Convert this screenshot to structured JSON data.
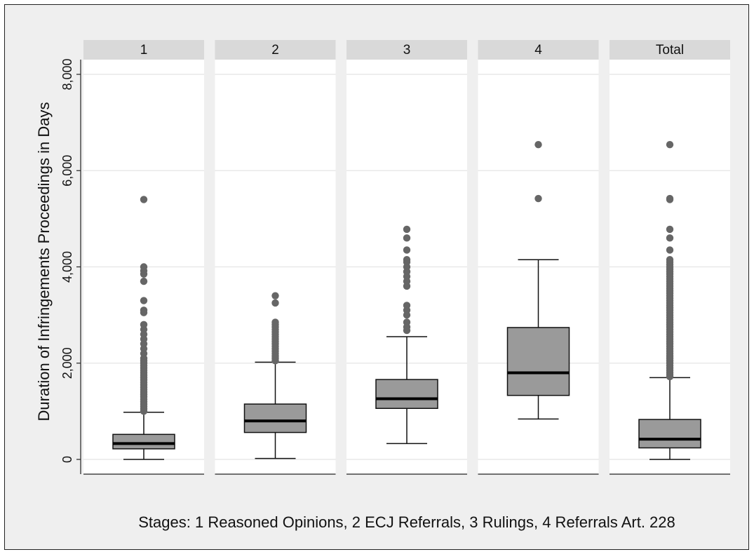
{
  "chart_data": {
    "type": "box",
    "ylabel": "Duration of Infringements Proceedings in Days",
    "ylim": [
      0,
      8000
    ],
    "yticks": [
      0,
      2000,
      4000,
      6000,
      8000
    ],
    "ytick_labels": [
      "0",
      "2,000",
      "4,000",
      "6,000",
      "8,000"
    ],
    "note": "Stages: 1 Reasoned Opinions, 2 ECJ Referrals, 3 Rulings, 4 Referrals Art. 228",
    "grid": true,
    "colors": {
      "box_fill": "#9a9a9a",
      "median": "#000000",
      "outlier": "#666666",
      "panel": "#ffffff",
      "strip": "#d9d9d9",
      "background": "#efefef"
    },
    "panels": [
      {
        "label": "1",
        "whisker_low": 0,
        "q1": 220,
        "median": 330,
        "q3": 520,
        "whisker_high": 980,
        "outliers": [
          1000,
          1050,
          1100,
          1150,
          1200,
          1250,
          1300,
          1350,
          1400,
          1450,
          1500,
          1550,
          1600,
          1650,
          1700,
          1750,
          1800,
          1850,
          1900,
          1950,
          2000,
          2050,
          2100,
          2200,
          2300,
          2400,
          2500,
          2600,
          2700,
          2800,
          3050,
          3100,
          3300,
          3700,
          3850,
          3920,
          4000,
          5400
        ]
      },
      {
        "label": "2",
        "whisker_low": 20,
        "q1": 560,
        "median": 800,
        "q3": 1150,
        "whisker_high": 2020,
        "outliers": [
          2050,
          2100,
          2150,
          2200,
          2250,
          2300,
          2350,
          2400,
          2450,
          2500,
          2550,
          2600,
          2650,
          2700,
          2750,
          2800,
          2850,
          3250,
          3400
        ]
      },
      {
        "label": "3",
        "whisker_low": 330,
        "q1": 1060,
        "median": 1260,
        "q3": 1660,
        "whisker_high": 2550,
        "outliers": [
          2680,
          2750,
          2850,
          3000,
          3100,
          3200,
          3600,
          3700,
          3800,
          3900,
          4000,
          4100,
          4150,
          4350,
          4600,
          4780
        ]
      },
      {
        "label": "4",
        "whisker_low": 840,
        "q1": 1330,
        "median": 1800,
        "q3": 2740,
        "whisker_high": 4150,
        "outliers": [
          5420,
          6540
        ]
      },
      {
        "label": "Total",
        "whisker_low": 0,
        "q1": 240,
        "median": 420,
        "q3": 830,
        "whisker_high": 1700,
        "outliers": [
          1720,
          1760,
          1800,
          1850,
          1900,
          1950,
          2000,
          2050,
          2100,
          2150,
          2200,
          2250,
          2300,
          2350,
          2400,
          2450,
          2500,
          2550,
          2600,
          2650,
          2700,
          2750,
          2800,
          2850,
          2900,
          2950,
          3000,
          3050,
          3100,
          3150,
          3200,
          3250,
          3300,
          3350,
          3400,
          3450,
          3500,
          3550,
          3600,
          3650,
          3700,
          3750,
          3800,
          3850,
          3900,
          3950,
          4000,
          4050,
          4100,
          4150,
          4350,
          4600,
          4780,
          5400,
          5420,
          6540
        ]
      }
    ]
  }
}
